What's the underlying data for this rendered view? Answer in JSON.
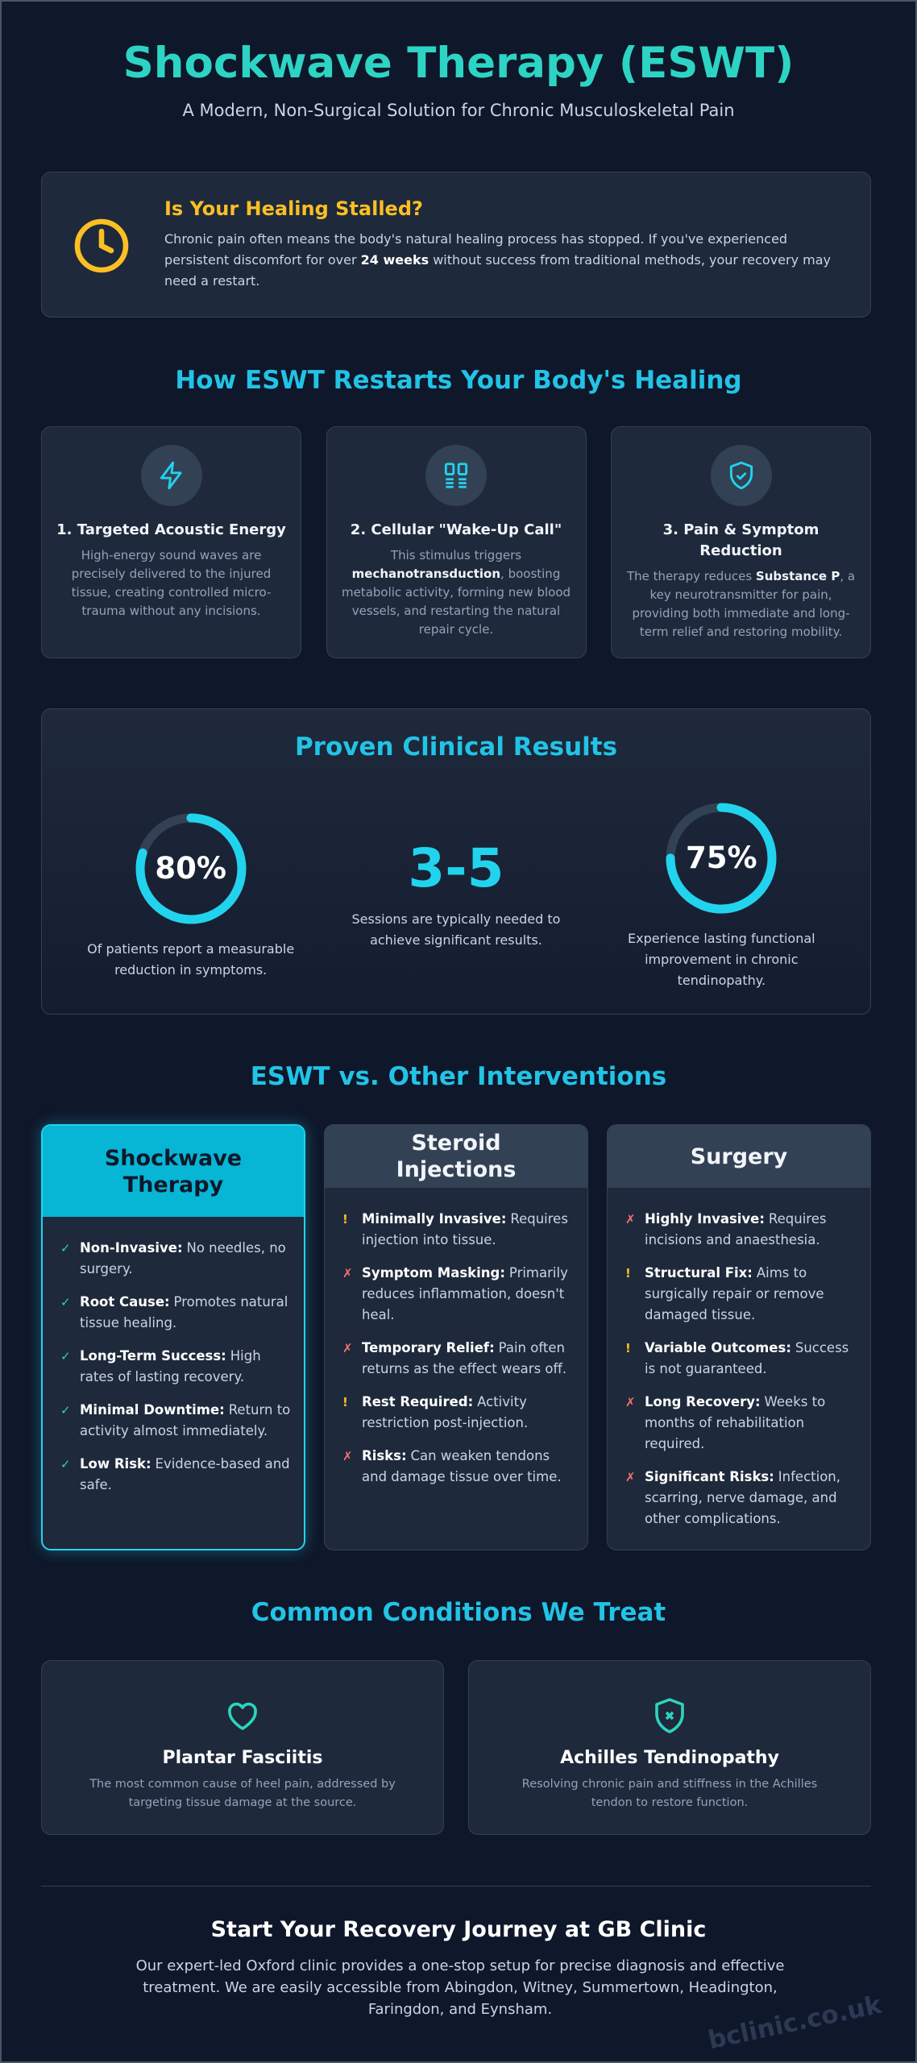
{
  "header": {
    "title": "Shockwave Therapy (ESWT)",
    "subtitle": "A Modern, Non-Surgical Solution for Chronic Musculoskeletal Pain"
  },
  "alert": {
    "title": "Is Your Healing Stalled?",
    "text": {
      "before": "Chronic pain often means the body's natural healing process has stopped. If you've experienced persistent discomfort for over",
      "strong": "24 weeks",
      "after": "without success from traditional methods, your recovery may need a restart."
    }
  },
  "how": {
    "title": "How ESWT Restarts Your Body's Healing",
    "steps": [
      {
        "title": "1. Targeted Acoustic Energy",
        "text": {
          "before": "High-energy sound waves are precisely delivered to the injured tissue, creating controlled micro-trauma without any incisions."
        }
      },
      {
        "title": "2. Cellular \"Wake-Up Call\"",
        "text": {
          "before": "This stimulus triggers",
          "strong": "mechanotransduction",
          "after": ", boosting metabolic activity, forming new blood vessels, and restarting the natural repair cycle."
        }
      },
      {
        "title": "3. Pain & Symptom Reduction",
        "text": {
          "before": "The therapy reduces",
          "strong": "Substance P",
          "after": ", a key neurotransmitter for pain, providing both immediate and long-term relief and restoring mobility."
        }
      }
    ]
  },
  "results": {
    "title": "Proven Clinical Results",
    "stats": [
      {
        "value": 80,
        "label": "80%",
        "caption": "Of patients report a measurable reduction in symptoms."
      },
      {
        "label": "3-5",
        "caption": "Sessions are typically needed to achieve significant results."
      },
      {
        "value": 75,
        "label": "75%",
        "caption": "Experience lasting functional improvement in chronic tendinopathy."
      }
    ]
  },
  "comparison": {
    "title": "ESWT vs. Other Interventions",
    "columns": [
      {
        "title": "Shockwave Therapy",
        "items": [
          {
            "icon": "✓",
            "color": "#34d399",
            "term": "Non-Invasive:",
            "text": "No needles, no surgery."
          },
          {
            "icon": "✓",
            "color": "#34d399",
            "term": "Root Cause:",
            "text": "Promotes natural tissue healing."
          },
          {
            "icon": "✓",
            "color": "#34d399",
            "term": "Long-Term Success:",
            "text": "High rates of lasting recovery."
          },
          {
            "icon": "✓",
            "color": "#34d399",
            "term": "Minimal Downtime:",
            "text": "Return to activity almost immediately."
          },
          {
            "icon": "✓",
            "color": "#34d399",
            "term": "Low Risk:",
            "text": "Evidence-based and safe."
          }
        ]
      },
      {
        "title": "Steroid Injections",
        "items": [
          {
            "icon": "!",
            "color": "#fbbf24",
            "term": "Minimally Invasive:",
            "text": "Requires injection into tissue."
          },
          {
            "icon": "✗",
            "color": "#f87171",
            "term": "Symptom Masking:",
            "text": "Primarily reduces inflammation, doesn't heal."
          },
          {
            "icon": "✗",
            "color": "#f87171",
            "term": "Temporary Relief:",
            "text": "Pain often returns as the effect wears off."
          },
          {
            "icon": "!",
            "color": "#fbbf24",
            "term": "Rest Required:",
            "text": "Activity restriction post-injection."
          },
          {
            "icon": "✗",
            "color": "#f87171",
            "term": "Risks:",
            "text": "Can weaken tendons and damage tissue over time."
          }
        ]
      },
      {
        "title": "Surgery",
        "items": [
          {
            "icon": "✗",
            "color": "#f87171",
            "term": "Highly Invasive:",
            "text": "Requires incisions and anaesthesia."
          },
          {
            "icon": "!",
            "color": "#fbbf24",
            "term": "Structural Fix:",
            "text": "Aims to surgically repair or remove damaged tissue."
          },
          {
            "icon": "!",
            "color": "#fbbf24",
            "term": "Variable Outcomes:",
            "text": "Success is not guaranteed."
          },
          {
            "icon": "✗",
            "color": "#f87171",
            "term": "Long Recovery:",
            "text": "Weeks to months of rehabilitation required."
          },
          {
            "icon": "✗",
            "color": "#f87171",
            "term": "Significant Risks:",
            "text": "Infection, scarring, nerve damage, and other complications."
          }
        ]
      }
    ]
  },
  "conditions": {
    "title": "Common Conditions We Treat",
    "items": [
      {
        "title": "Plantar Fasciitis",
        "text": "The most common cause of heel pain, addressed by targeting tissue damage at the source."
      },
      {
        "title": "Achilles Tendinopathy",
        "text": "Resolving chronic pain and stiffness in the Achilles tendon to restore function."
      }
    ]
  },
  "cta": {
    "title": "Start Your Recovery Journey at GB Clinic",
    "text": "Our expert-led Oxford clinic provides a one-stop setup for precise diagnosis and effective treatment. We are easily accessible from Abingdon, Witney, Summertown, Headington, Faringdon, and Eynsham."
  },
  "watermark": "bclinic.co.uk"
}
